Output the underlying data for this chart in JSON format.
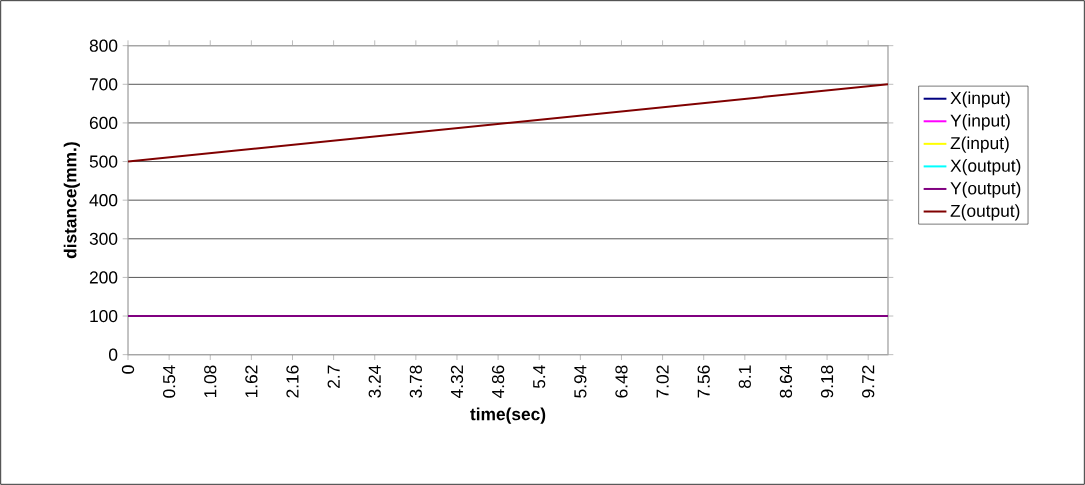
{
  "chart_data": {
    "type": "line",
    "xlabel": "time(sec)",
    "ylabel": "distance(mm.)",
    "x": [
      0,
      9.98
    ],
    "series": [
      {
        "name": "X(input)",
        "color": "#000080",
        "values": [
          null,
          null
        ]
      },
      {
        "name": "Y(input)",
        "color": "#ff00ff",
        "values": [
          null,
          null
        ]
      },
      {
        "name": "Z(input)",
        "color": "#ffff00",
        "values": [
          null,
          null
        ]
      },
      {
        "name": "X(output)",
        "color": "#00ffff",
        "values": [
          null,
          null
        ]
      },
      {
        "name": "Y(output)",
        "color": "#800080",
        "values": [
          100,
          100
        ]
      },
      {
        "name": "Z(output)",
        "color": "#800000",
        "values": [
          500,
          700
        ]
      }
    ],
    "xlim": [
      0,
      9.98
    ],
    "xticks": [
      0,
      0.54,
      1.08,
      1.62,
      2.16,
      2.7,
      3.24,
      3.78,
      4.32,
      4.86,
      5.4,
      5.94,
      6.48,
      7.02,
      7.56,
      8.1,
      8.64,
      9.18,
      9.72
    ],
    "ylim": [
      0,
      800
    ],
    "yticks": [
      0,
      100,
      200,
      300,
      400,
      500,
      600,
      700,
      800
    ],
    "grid": "y",
    "legend": "right",
    "marker": "none",
    "line_style": "solid"
  }
}
